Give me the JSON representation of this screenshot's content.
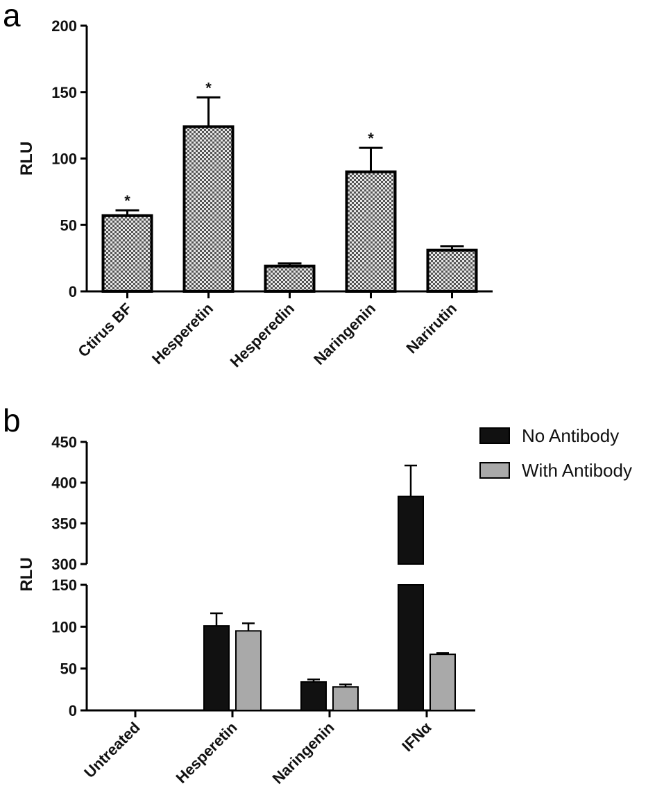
{
  "chart_data": [
    {
      "panel": "a",
      "type": "bar",
      "ylabel": "RLU",
      "xlabel": "",
      "ylim": [
        0,
        200
      ],
      "yticks": [
        0,
        50,
        100,
        150,
        200
      ],
      "categories": [
        "Ctirus BF",
        "Hesperetin",
        "Hesperedin",
        "Naringenin",
        "Narirutin"
      ],
      "values": [
        57,
        124,
        19,
        90,
        31
      ],
      "errors": [
        4,
        22,
        2,
        18,
        3
      ],
      "significance": [
        "*",
        "*",
        "",
        "*",
        ""
      ],
      "fill_pattern": "checkered",
      "grid": false
    },
    {
      "panel": "b",
      "type": "bar",
      "ylabel": "RLU",
      "xlabel": "",
      "axis_break": {
        "lower": [
          0,
          150
        ],
        "upper": [
          300,
          450
        ]
      },
      "yticks": [
        0,
        50,
        100,
        150,
        300,
        350,
        400,
        450
      ],
      "categories": [
        "Untreated",
        "Hesperetin",
        "Naringenin",
        "IFNα"
      ],
      "series": [
        {
          "name": "No Antibody",
          "color": "#111111",
          "values": [
            0,
            101,
            34,
            383
          ],
          "errors": [
            0,
            15,
            3,
            38
          ]
        },
        {
          "name": "With Antibody",
          "color": "#a9a9a9",
          "values": [
            0,
            95,
            28,
            67
          ],
          "errors": [
            0,
            9,
            3,
            1.5
          ]
        }
      ],
      "legend_position": "top-right",
      "grid": false
    }
  ]
}
